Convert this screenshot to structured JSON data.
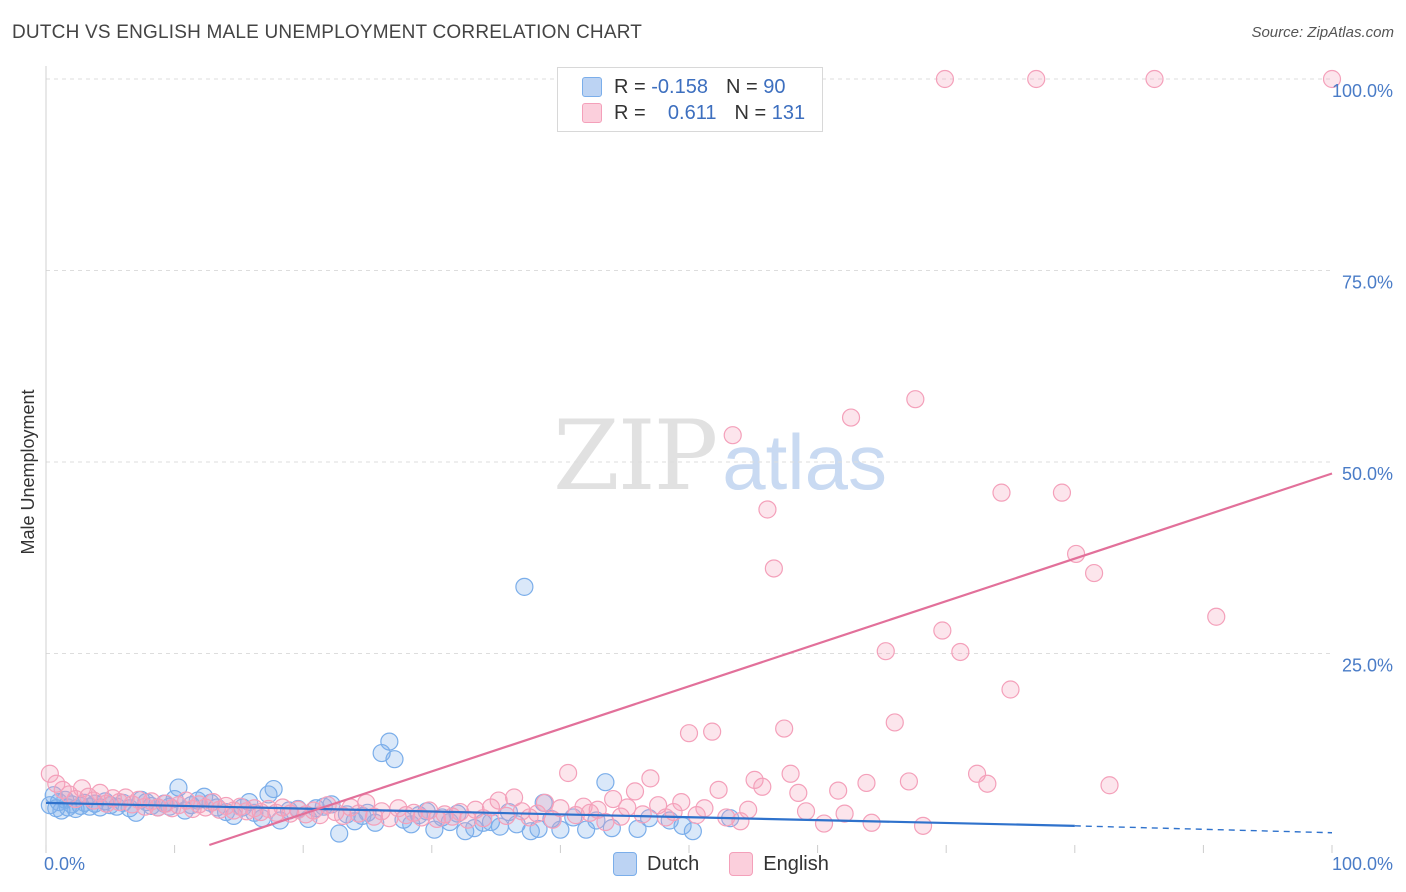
{
  "header": {
    "title": "DUTCH VS ENGLISH MALE UNEMPLOYMENT CORRELATION CHART",
    "source": "Source: ZipAtlas.com"
  },
  "watermark": {
    "zip": "ZIP",
    "atlas": "atlas"
  },
  "legend_top": {
    "rows": [
      {
        "r_label": "R =",
        "r_value": "-0.158",
        "n_label": "N =",
        "n_value": "90"
      },
      {
        "r_label": "R =",
        "r_value": "0.611",
        "n_label": "N =",
        "n_value": "131"
      }
    ]
  },
  "legend_bottom": {
    "dutch": "Dutch",
    "english": "English"
  },
  "chart_data": {
    "type": "scatter",
    "title": "DUTCH VS ENGLISH MALE UNEMPLOYMENT CORRELATION CHART",
    "xlabel": "",
    "ylabel": "Male Unemployment",
    "xlim": [
      0,
      100
    ],
    "ylim": [
      0,
      100
    ],
    "x_tick_labels": [
      "0.0%",
      "100.0%"
    ],
    "y_ticks": [
      {
        "value": 25,
        "label": "25.0%"
      },
      {
        "value": 50,
        "label": "50.0%"
      },
      {
        "value": 75,
        "label": "75.0%"
      },
      {
        "value": 100,
        "label": "100.0%"
      }
    ],
    "colors": {
      "dutch": "#7baeea",
      "english": "#f4a0ba",
      "dutch_line": "#2f72cc",
      "english_line": "#e2709a"
    },
    "series": [
      {
        "name": "Dutch",
        "R": -0.158,
        "N": 90,
        "trend": {
          "x0": 0,
          "y0": 5.5,
          "x1": 80,
          "y1": 2.5,
          "dashed_to_x": 100,
          "dashed_to_y": 1.6
        },
        "points": [
          [
            0.3,
            5.2
          ],
          [
            0.6,
            6.5
          ],
          [
            0.8,
            4.8
          ],
          [
            1.0,
            5.6
          ],
          [
            1.2,
            4.5
          ],
          [
            1.5,
            5.9
          ],
          [
            1.7,
            4.9
          ],
          [
            2.0,
            5.3
          ],
          [
            2.3,
            4.7
          ],
          [
            2.7,
            5.1
          ],
          [
            3.0,
            5.5
          ],
          [
            3.4,
            5.0
          ],
          [
            3.8,
            5.4
          ],
          [
            4.2,
            4.9
          ],
          [
            4.6,
            5.7
          ],
          [
            5.0,
            5.2
          ],
          [
            5.5,
            5.0
          ],
          [
            6.0,
            5.5
          ],
          [
            6.5,
            4.8
          ],
          [
            7.0,
            4.2
          ],
          [
            7.4,
            5.9
          ],
          [
            7.8,
            5.6
          ],
          [
            8.2,
            5.1
          ],
          [
            8.7,
            4.9
          ],
          [
            9.2,
            5.4
          ],
          [
            9.6,
            5.0
          ],
          [
            10.0,
            6.0
          ],
          [
            10.3,
            7.5
          ],
          [
            10.8,
            4.5
          ],
          [
            11.3,
            5.2
          ],
          [
            11.8,
            5.8
          ],
          [
            12.3,
            6.3
          ],
          [
            12.8,
            5.5
          ],
          [
            13.3,
            4.9
          ],
          [
            14.0,
            4.3
          ],
          [
            14.6,
            3.8
          ],
          [
            15.3,
            4.9
          ],
          [
            15.8,
            5.6
          ],
          [
            16.2,
            4.2
          ],
          [
            16.8,
            3.5
          ],
          [
            17.3,
            6.6
          ],
          [
            17.7,
            7.3
          ],
          [
            18.2,
            3.2
          ],
          [
            18.9,
            4.5
          ],
          [
            19.6,
            4.7
          ],
          [
            20.4,
            3.4
          ],
          [
            21.0,
            4.8
          ],
          [
            21.6,
            5.0
          ],
          [
            22.2,
            5.3
          ],
          [
            22.8,
            1.5
          ],
          [
            23.4,
            4.0
          ],
          [
            24.0,
            3.1
          ],
          [
            24.6,
            3.8
          ],
          [
            25.0,
            4.2
          ],
          [
            25.6,
            2.9
          ],
          [
            26.1,
            12.0
          ],
          [
            26.7,
            13.5
          ],
          [
            27.1,
            11.2
          ],
          [
            27.8,
            3.3
          ],
          [
            28.4,
            2.7
          ],
          [
            29.0,
            3.9
          ],
          [
            29.6,
            4.4
          ],
          [
            30.2,
            2.0
          ],
          [
            30.8,
            3.6
          ],
          [
            31.4,
            3.0
          ],
          [
            32.0,
            4.1
          ],
          [
            32.6,
            1.8
          ],
          [
            33.3,
            2.2
          ],
          [
            34.0,
            2.9
          ],
          [
            34.6,
            3.0
          ],
          [
            35.3,
            2.4
          ],
          [
            36.0,
            4.3
          ],
          [
            36.6,
            2.7
          ],
          [
            37.2,
            33.7
          ],
          [
            37.7,
            1.8
          ],
          [
            38.3,
            2.1
          ],
          [
            38.7,
            5.5
          ],
          [
            39.3,
            3.4
          ],
          [
            40.0,
            2.0
          ],
          [
            41.0,
            3.6
          ],
          [
            42.0,
            2.0
          ],
          [
            42.8,
            3.2
          ],
          [
            43.5,
            8.2
          ],
          [
            44.0,
            2.2
          ],
          [
            46.0,
            2.1
          ],
          [
            46.9,
            3.5
          ],
          [
            48.5,
            3.2
          ],
          [
            49.5,
            2.5
          ],
          [
            50.3,
            1.8
          ],
          [
            53.2,
            3.5
          ]
        ]
      },
      {
        "name": "English",
        "R": 0.611,
        "N": 131,
        "trend": {
          "x0": 12.7,
          "y0": 0,
          "x1": 100,
          "y1": 48.5
        },
        "points": [
          [
            0.3,
            9.3
          ],
          [
            0.8,
            8.0
          ],
          [
            1.3,
            7.2
          ],
          [
            1.8,
            6.6
          ],
          [
            2.3,
            6.0
          ],
          [
            2.8,
            7.4
          ],
          [
            3.3,
            6.3
          ],
          [
            3.7,
            5.8
          ],
          [
            4.2,
            6.8
          ],
          [
            4.7,
            5.4
          ],
          [
            5.2,
            6.1
          ],
          [
            5.7,
            5.6
          ],
          [
            6.2,
            6.2
          ],
          [
            6.7,
            5.3
          ],
          [
            7.2,
            5.9
          ],
          [
            7.7,
            5.0
          ],
          [
            8.2,
            5.7
          ],
          [
            8.7,
            4.9
          ],
          [
            9.3,
            5.4
          ],
          [
            9.8,
            4.8
          ],
          [
            10.3,
            5.2
          ],
          [
            10.9,
            5.8
          ],
          [
            11.4,
            4.7
          ],
          [
            11.9,
            5.3
          ],
          [
            12.4,
            4.9
          ],
          [
            13.0,
            5.6
          ],
          [
            13.5,
            4.6
          ],
          [
            14.0,
            5.1
          ],
          [
            14.6,
            4.5
          ],
          [
            15.1,
            5.0
          ],
          [
            15.6,
            4.4
          ],
          [
            16.2,
            4.8
          ],
          [
            16.7,
            4.3
          ],
          [
            17.3,
            4.7
          ],
          [
            17.9,
            4.2
          ],
          [
            18.4,
            4.9
          ],
          [
            19.0,
            4.1
          ],
          [
            19.6,
            4.6
          ],
          [
            20.2,
            4.0
          ],
          [
            20.8,
            4.5
          ],
          [
            21.3,
            3.9
          ],
          [
            21.9,
            5.2
          ],
          [
            22.5,
            4.3
          ],
          [
            23.1,
            3.8
          ],
          [
            23.7,
            4.9
          ],
          [
            24.3,
            4.1
          ],
          [
            24.9,
            5.5
          ],
          [
            25.5,
            3.7
          ],
          [
            26.1,
            4.4
          ],
          [
            26.7,
            3.5
          ],
          [
            27.4,
            4.8
          ],
          [
            28.0,
            3.9
          ],
          [
            28.6,
            4.2
          ],
          [
            29.2,
            3.6
          ],
          [
            29.8,
            4.5
          ],
          [
            30.4,
            3.4
          ],
          [
            31.0,
            4.0
          ],
          [
            31.6,
            3.7
          ],
          [
            32.2,
            4.3
          ],
          [
            32.8,
            3.3
          ],
          [
            33.4,
            4.6
          ],
          [
            34.0,
            3.5
          ],
          [
            34.6,
            4.9
          ],
          [
            35.2,
            5.8
          ],
          [
            35.8,
            3.8
          ],
          [
            36.4,
            6.2
          ],
          [
            37.0,
            4.4
          ],
          [
            37.6,
            3.6
          ],
          [
            38.2,
            4.1
          ],
          [
            38.8,
            5.5
          ],
          [
            39.4,
            3.3
          ],
          [
            40.0,
            4.8
          ],
          [
            40.6,
            9.4
          ],
          [
            41.2,
            3.9
          ],
          [
            41.8,
            5.0
          ],
          [
            42.3,
            4.2
          ],
          [
            42.9,
            4.6
          ],
          [
            43.5,
            3.0
          ],
          [
            44.1,
            6.0
          ],
          [
            44.7,
            3.7
          ],
          [
            45.2,
            4.9
          ],
          [
            45.8,
            7.0
          ],
          [
            46.4,
            4.0
          ],
          [
            47.0,
            8.7
          ],
          [
            47.6,
            5.2
          ],
          [
            48.2,
            3.6
          ],
          [
            48.8,
            4.3
          ],
          [
            49.4,
            5.6
          ],
          [
            50.0,
            14.6
          ],
          [
            50.6,
            3.9
          ],
          [
            51.2,
            4.8
          ],
          [
            51.8,
            14.8
          ],
          [
            52.3,
            7.2
          ],
          [
            52.9,
            3.6
          ],
          [
            53.4,
            53.5
          ],
          [
            54.0,
            3.1
          ],
          [
            54.6,
            4.6
          ],
          [
            55.1,
            8.5
          ],
          [
            55.7,
            7.6
          ],
          [
            56.1,
            43.8
          ],
          [
            56.6,
            36.1
          ],
          [
            57.4,
            15.2
          ],
          [
            57.9,
            9.3
          ],
          [
            58.5,
            6.8
          ],
          [
            59.1,
            4.4
          ],
          [
            60.5,
            2.8
          ],
          [
            61.6,
            7.1
          ],
          [
            62.1,
            4.1
          ],
          [
            62.6,
            55.8
          ],
          [
            63.8,
            8.1
          ],
          [
            64.2,
            2.9
          ],
          [
            65.3,
            25.3
          ],
          [
            66.0,
            16.0
          ],
          [
            67.1,
            8.3
          ],
          [
            67.6,
            58.2
          ],
          [
            68.2,
            2.5
          ],
          [
            69.7,
            28.0
          ],
          [
            69.9,
            100.0
          ],
          [
            71.1,
            25.2
          ],
          [
            72.4,
            9.3
          ],
          [
            73.2,
            8.0
          ],
          [
            74.3,
            46.0
          ],
          [
            75.0,
            20.3
          ],
          [
            77.0,
            100.0
          ],
          [
            79.0,
            46.0
          ],
          [
            80.1,
            38.0
          ],
          [
            81.5,
            35.5
          ],
          [
            82.7,
            7.8
          ],
          [
            86.2,
            100.0
          ],
          [
            91.0,
            29.8
          ],
          [
            100.0,
            100.0
          ]
        ]
      }
    ]
  }
}
